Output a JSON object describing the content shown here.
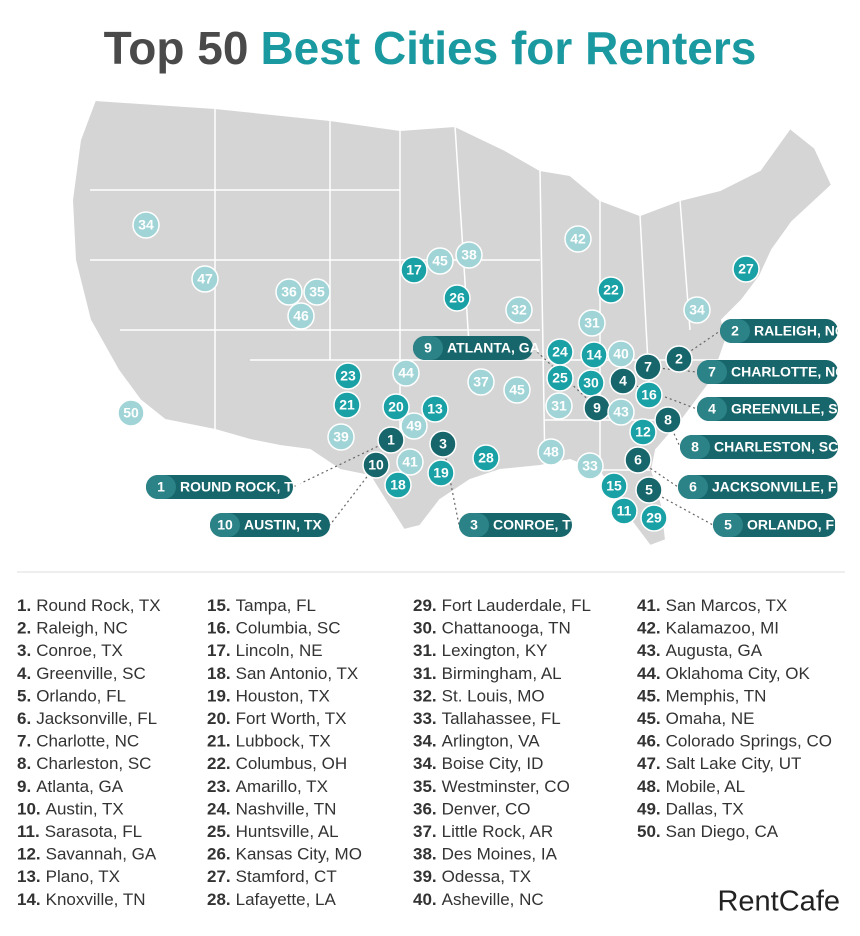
{
  "title": {
    "part1": "Top 50",
    "part2": "Best Cities for Renters"
  },
  "markers": [
    "34",
    "47",
    "36",
    "35",
    "46",
    "50",
    "23",
    "21",
    "39",
    "44",
    "20",
    "13",
    "49",
    "1",
    "3",
    "10",
    "41",
    "19",
    "18",
    "17",
    "45",
    "38",
    "26",
    "32",
    "37",
    "45",
    "28",
    "48",
    "42",
    "22",
    "31",
    "24",
    "14",
    "40",
    "25",
    "30",
    "31",
    "9",
    "43",
    "4",
    "7",
    "2",
    "16",
    "8",
    "12",
    "6",
    "33",
    "15",
    "5",
    "11",
    "29",
    "27",
    "34"
  ],
  "callouts": [
    {
      "rank": "2",
      "label": "RALEIGH, NC"
    },
    {
      "rank": "7",
      "label": "CHARLOTTE, NC"
    },
    {
      "rank": "4",
      "label": "GREENVILLE, SC"
    },
    {
      "rank": "8",
      "label": "CHARLESTON, SC"
    },
    {
      "rank": "6",
      "label": "JACKSONVILLE, FL"
    },
    {
      "rank": "5",
      "label": "ORLANDO, FL"
    },
    {
      "rank": "9",
      "label": "ATLANTA, GA"
    },
    {
      "rank": "1",
      "label": "ROUND ROCK, TX"
    },
    {
      "rank": "10",
      "label": "AUSTIN, TX"
    },
    {
      "rank": "3",
      "label": "CONROE, TX"
    }
  ],
  "ranking": [
    [
      {
        "rank": "1.",
        "name": "Round Rock, TX"
      },
      {
        "rank": "2.",
        "name": "Raleigh, NC"
      },
      {
        "rank": "3.",
        "name": "Conroe, TX"
      },
      {
        "rank": "4.",
        "name": "Greenville, SC"
      },
      {
        "rank": "5.",
        "name": "Orlando, FL"
      },
      {
        "rank": "6.",
        "name": "Jacksonville, FL"
      },
      {
        "rank": "7.",
        "name": "Charlotte, NC"
      },
      {
        "rank": "8.",
        "name": "Charleston, SC"
      },
      {
        "rank": "9.",
        "name": "Atlanta, GA"
      },
      {
        "rank": "10.",
        "name": "Austin, TX"
      },
      {
        "rank": "11.",
        "name": "Sarasota, FL"
      },
      {
        "rank": "12.",
        "name": "Savannah, GA"
      },
      {
        "rank": "13.",
        "name": "Plano, TX"
      },
      {
        "rank": "14.",
        "name": "Knoxville, TN"
      }
    ],
    [
      {
        "rank": "15.",
        "name": "Tampa, FL"
      },
      {
        "rank": "16.",
        "name": "Columbia, SC"
      },
      {
        "rank": "17.",
        "name": "Lincoln, NE"
      },
      {
        "rank": "18.",
        "name": "San Antonio, TX"
      },
      {
        "rank": "19.",
        "name": "Houston, TX"
      },
      {
        "rank": "20.",
        "name": "Fort Worth, TX"
      },
      {
        "rank": "21.",
        "name": "Lubbock, TX"
      },
      {
        "rank": "22.",
        "name": "Columbus, OH"
      },
      {
        "rank": "23.",
        "name": "Amarillo, TX"
      },
      {
        "rank": "24.",
        "name": "Nashville, TN"
      },
      {
        "rank": "25.",
        "name": "Huntsville, AL"
      },
      {
        "rank": "26.",
        "name": "Kansas City, MO"
      },
      {
        "rank": "27.",
        "name": "Stamford, CT"
      },
      {
        "rank": "28.",
        "name": "Lafayette, LA"
      }
    ],
    [
      {
        "rank": "29.",
        "name": "Fort Lauderdale, FL"
      },
      {
        "rank": "30.",
        "name": "Chattanooga, TN"
      },
      {
        "rank": "31.",
        "name": "Lexington, KY"
      },
      {
        "rank": "31.",
        "name": "Birmingham, AL"
      },
      {
        "rank": "32.",
        "name": "St. Louis, MO"
      },
      {
        "rank": "33.",
        "name": "Tallahassee, FL"
      },
      {
        "rank": "34.",
        "name": "Arlington, VA"
      },
      {
        "rank": "34.",
        "name": "Boise City, ID"
      },
      {
        "rank": "35.",
        "name": "Westminster, CO"
      },
      {
        "rank": "36.",
        "name": "Denver, CO"
      },
      {
        "rank": "37.",
        "name": "Little Rock, AR"
      },
      {
        "rank": "38.",
        "name": "Des Moines, IA"
      },
      {
        "rank": "39.",
        "name": "Odessa, TX"
      },
      {
        "rank": "40.",
        "name": "Asheville, NC"
      }
    ],
    [
      {
        "rank": "41.",
        "name": "San Marcos, TX"
      },
      {
        "rank": "42.",
        "name": "Kalamazoo, MI"
      },
      {
        "rank": "43.",
        "name": "Augusta, GA"
      },
      {
        "rank": "44.",
        "name": "Oklahoma City, OK"
      },
      {
        "rank": "45.",
        "name": "Memphis, TN"
      },
      {
        "rank": "45.",
        "name": "Omaha, NE"
      },
      {
        "rank": "46.",
        "name": "Colorado Springs, CO"
      },
      {
        "rank": "47.",
        "name": "Salt Lake City, UT"
      },
      {
        "rank": "48.",
        "name": "Mobile, AL"
      },
      {
        "rank": "49.",
        "name": "Dallas, TX"
      },
      {
        "rank": "50.",
        "name": "San Diego, CA"
      }
    ]
  ],
  "brand": "RentCafe"
}
